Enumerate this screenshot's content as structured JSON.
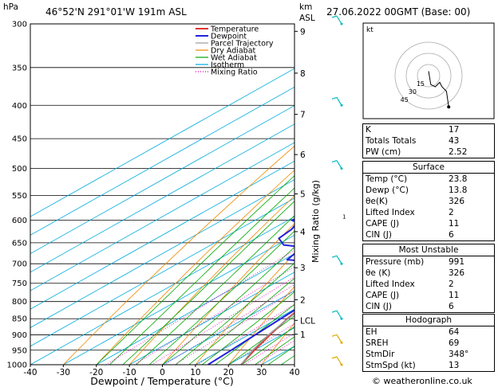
{
  "header": {
    "unit_hpa": "hPa",
    "location": "46°52'N  291°01'W  191m  ASL",
    "unit_km": "km",
    "unit_asl": "ASL",
    "datetime": "27.06.2022  00GMT  (Base: 00)"
  },
  "legend": [
    "Temperature",
    "Dewpoint",
    "Parcel Trajectory",
    "Dry Adiabat",
    "Wet Adiabat",
    "Isotherm",
    "Mixing Ratio"
  ],
  "colors": {
    "temperature": "#dd3333",
    "dewpoint": "#2222dd",
    "parcel": "#999999",
    "dry_adiabat": "#ee8800",
    "wet_adiabat": "#00aa00",
    "isotherm": "#00aadd",
    "mixing_ratio": "#dd00aa",
    "wind": "#00bbbb",
    "wind_low": "#ddaa00"
  },
  "chart_data": {
    "type": "line",
    "xlabel": "Dewpoint / Temperature (°C)",
    "ylabel": "Mixing Ratio (g/kg)",
    "x_ticks": [
      -40,
      -30,
      -20,
      -10,
      0,
      10,
      20,
      30,
      40
    ],
    "p_ticks": [
      300,
      350,
      400,
      450,
      500,
      550,
      600,
      650,
      700,
      750,
      800,
      850,
      900,
      950,
      1000
    ],
    "km_ticks": [
      {
        "label": "9",
        "p": 308
      },
      {
        "label": "8",
        "p": 357
      },
      {
        "label": "7",
        "p": 413
      },
      {
        "label": "6",
        "p": 476
      },
      {
        "label": "5",
        "p": 547
      },
      {
        "label": "4",
        "p": 625
      },
      {
        "label": "3",
        "p": 710
      },
      {
        "label": "2",
        "p": 795
      },
      {
        "label": "LCL",
        "p": 855
      },
      {
        "label": "1",
        "p": 898
      }
    ],
    "mixing_ratio_labels": [
      "1",
      "2",
      "3",
      "4",
      "5",
      "8",
      "10",
      "15",
      "20",
      "25"
    ],
    "mixing_ratio_values": [
      1,
      2,
      3,
      4,
      5,
      8,
      10,
      15,
      20,
      25
    ],
    "series": [
      {
        "name": "Temperature",
        "p": [
          1000,
          950,
          900,
          850,
          800,
          750,
          700,
          650,
          600,
          550,
          500,
          450,
          400,
          350,
          300
        ],
        "t": [
          23.8,
          20,
          16.5,
          13,
          10,
          7,
          5.5,
          3,
          -1,
          -5,
          -10,
          -16,
          -22,
          -30,
          -38
        ]
      },
      {
        "name": "Dewpoint",
        "p": [
          1000,
          950,
          900,
          850,
          800,
          750,
          730,
          700,
          690,
          660,
          655,
          640,
          620,
          605,
          600,
          580,
          560,
          550,
          500,
          470,
          450,
          440,
          400,
          370,
          350,
          310,
          300
        ],
        "t": [
          13.8,
          13,
          12,
          11,
          10,
          7,
          3,
          -1,
          -19,
          -21,
          -28,
          -33,
          -34,
          -36,
          -39,
          -35,
          -34,
          -36,
          -31,
          -33,
          -34,
          -33,
          -44,
          -48,
          -44,
          -45,
          -49
        ]
      },
      {
        "name": "Parcel Trajectory",
        "p": [
          1000,
          950,
          900,
          855,
          800,
          750,
          700,
          650,
          600,
          550,
          500,
          450,
          400,
          350,
          300
        ],
        "t": [
          23.8,
          19.5,
          16,
          13.5,
          10.5,
          7.5,
          4.5,
          1,
          -2.5,
          -6.5,
          -11,
          -16,
          -22,
          -29,
          -37
        ]
      }
    ],
    "hodograph": {
      "label": "kt",
      "ring_labels": [
        "15",
        "30",
        "45"
      ],
      "u": [
        0,
        0.5,
        1,
        3,
        5,
        6,
        8,
        9
      ],
      "v": [
        2,
        -1,
        -4,
        -5,
        -3,
        -5,
        -7,
        -14
      ]
    },
    "wind_barbs": [
      {
        "p": 300,
        "color": "wind"
      },
      {
        "p": 400,
        "color": "wind"
      },
      {
        "p": 500,
        "color": "wind"
      },
      {
        "p": 700,
        "color": "wind"
      },
      {
        "p": 850,
        "color": "wind"
      },
      {
        "p": 925,
        "color": "wind_low"
      },
      {
        "p": 1000,
        "color": "wind_low"
      }
    ]
  },
  "indices": [
    {
      "label": "K",
      "value": "17"
    },
    {
      "label": "Totals Totals",
      "value": "43"
    },
    {
      "label": "PW (cm)",
      "value": "2.52"
    }
  ],
  "surface": {
    "title": "Surface",
    "rows": [
      {
        "label": "Temp (°C)",
        "value": "23.8"
      },
      {
        "label": "Dewp (°C)",
        "value": "13.8"
      },
      {
        "label": "θe(K)",
        "value": "326"
      },
      {
        "label": "Lifted Index",
        "value": "2"
      },
      {
        "label": "CAPE (J)",
        "value": "11"
      },
      {
        "label": "CIN (J)",
        "value": "6"
      }
    ]
  },
  "most_unstable": {
    "title": "Most Unstable",
    "rows": [
      {
        "label": "Pressure (mb)",
        "value": "991"
      },
      {
        "label": "θe (K)",
        "value": "326"
      },
      {
        "label": "Lifted Index",
        "value": "2"
      },
      {
        "label": "CAPE (J)",
        "value": "11"
      },
      {
        "label": "CIN (J)",
        "value": "6"
      }
    ]
  },
  "hodograph_table": {
    "title": "Hodograph",
    "rows": [
      {
        "label": "EH",
        "value": "64"
      },
      {
        "label": "SREH",
        "value": "69"
      },
      {
        "label": "StmDir",
        "value": "348°"
      },
      {
        "label": "StmSpd (kt)",
        "value": "13"
      }
    ]
  },
  "footer": {
    "copyright": "© weatheronline.co.uk"
  }
}
